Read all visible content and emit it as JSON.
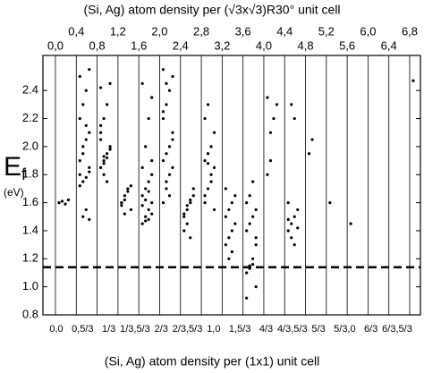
{
  "chart_data": {
    "type": "scatter",
    "title": "(Si, Ag) atom density per (√3x√3)R30° unit cell",
    "xlabel": "(Si, Ag) atom density per (1x1) unit cell",
    "ylabel": "E",
    "ylabel_sub": "f",
    "ylabel_unit": "(eV)",
    "categories": [
      "0,0",
      "0,4",
      "0,8",
      "1,2",
      "1,6",
      "2,0",
      "2,4",
      "2,8",
      "3,2",
      "3,6",
      "4,0",
      "4,4",
      "4,8",
      "5,2",
      "5,6",
      "6,0",
      "6,4",
      "6,8"
    ],
    "bottom_labels": [
      "0,0",
      "0,5/3",
      "1/3",
      "1/3,5/3",
      "2/3",
      "2/3,5/3",
      "1,0",
      "1,5/3",
      "4/3",
      "4/3,5/3",
      "5/3",
      "5/3,0",
      "6/3",
      "6/3,5/3"
    ],
    "values": [
      [
        1.6,
        1.61,
        1.59,
        1.62
      ],
      [
        1.8,
        1.5,
        1.55,
        1.48,
        1.72,
        1.75,
        1.78,
        1.85,
        1.9,
        2.0,
        2.05,
        2.1,
        2.2,
        2.3,
        2.4,
        2.55,
        2.5,
        1.95,
        2.15,
        1.82
      ],
      [
        1.85,
        1.9,
        1.95,
        2.0,
        2.05,
        1.88,
        1.92,
        1.98,
        2.1,
        2.2,
        2.3,
        2.45,
        2.42,
        1.8,
        1.75,
        2.0,
        2.15,
        1.93
      ],
      [
        1.6,
        1.65,
        1.7,
        1.72,
        1.58,
        1.62,
        1.68,
        1.55,
        1.6,
        1.52
      ],
      [
        1.45,
        1.5,
        1.55,
        1.6,
        1.65,
        1.7,
        1.48,
        1.52,
        1.58,
        1.62,
        1.75,
        1.8,
        1.85,
        2.0,
        2.2,
        2.35,
        2.45,
        1.47,
        1.68,
        1.9
      ],
      [
        1.6,
        1.7,
        1.8,
        1.85,
        1.9,
        1.95,
        2.0,
        2.1,
        2.2,
        2.3,
        2.4,
        2.5,
        2.55,
        1.75,
        1.65,
        2.05,
        2.25,
        2.45
      ],
      [
        1.5,
        1.55,
        1.6,
        1.65,
        1.4,
        1.45,
        1.35,
        1.7,
        1.52,
        1.58,
        1.62
      ],
      [
        1.6,
        1.7,
        1.8,
        1.85,
        1.9,
        1.95,
        2.0,
        2.1,
        2.2,
        2.3,
        1.75,
        1.55,
        1.65,
        1.88
      ],
      [
        1.3,
        1.35,
        1.4,
        1.45,
        1.5,
        1.55,
        1.6,
        1.65,
        1.7,
        1.2,
        1.25
      ],
      [
        1.1,
        1.15,
        1.2,
        1.3,
        1.4,
        1.45,
        1.5,
        1.55,
        1.6,
        1.65,
        1.75,
        1.0,
        0.92,
        1.13,
        1.16,
        1.35
      ],
      [
        1.8,
        1.9,
        2.2,
        2.3,
        2.35,
        2.1
      ],
      [
        1.4,
        1.45,
        1.5,
        1.55,
        1.6,
        1.35,
        1.3,
        1.42,
        1.48,
        2.3,
        2.2
      ],
      [
        1.95,
        2.05
      ],
      [
        1.6
      ],
      [
        1.45
      ],
      [],
      [],
      [
        2.47
      ]
    ],
    "color": "#000000",
    "reference_line": 1.14,
    "ylim": [
      0.8,
      2.65
    ],
    "yticks": [
      0.8,
      {
        "value": 1,
        "label": "1.0"
      },
      1.2,
      1.4,
      1.6,
      1.8,
      {
        "value": 2,
        "label": "2.0"
      },
      2.2,
      2.4
    ],
    "grid": true
  }
}
